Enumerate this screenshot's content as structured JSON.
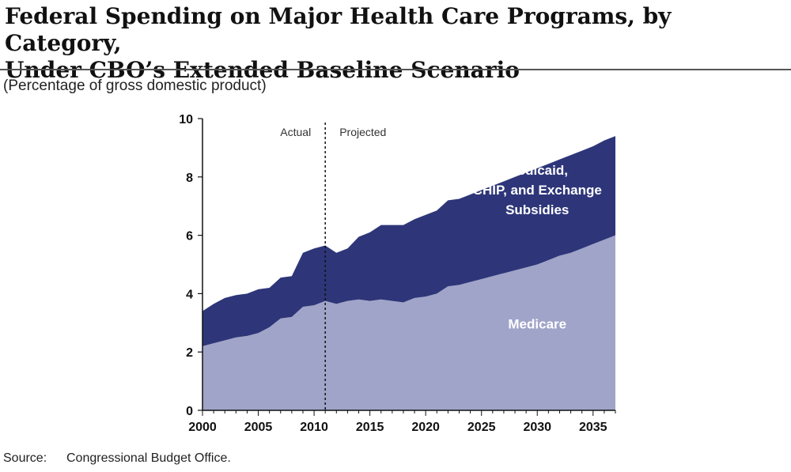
{
  "title_line1": "Federal Spending on Major Health Care Programs, by Category,",
  "title_line2": "Under CBO’s Extended Baseline Scenario",
  "subtitle": "(Percentage of gross domestic product)",
  "source_label": "Source:",
  "source_text": "Congressional Budget Office.",
  "chart_data": {
    "type": "area",
    "stacked": true,
    "xlim": [
      2000,
      2037
    ],
    "ylim": [
      0,
      10
    ],
    "x_ticks": [
      2000,
      2005,
      2010,
      2015,
      2020,
      2025,
      2030,
      2035
    ],
    "y_ticks": [
      0,
      2,
      4,
      6,
      8,
      10
    ],
    "divider": {
      "x": 2011,
      "left_label": "Actual",
      "right_label": "Projected"
    },
    "x": [
      2000,
      2001,
      2002,
      2003,
      2004,
      2005,
      2006,
      2007,
      2008,
      2009,
      2010,
      2011,
      2012,
      2013,
      2014,
      2015,
      2016,
      2017,
      2018,
      2019,
      2020,
      2021,
      2022,
      2023,
      2024,
      2025,
      2026,
      2027,
      2028,
      2029,
      2030,
      2031,
      2032,
      2033,
      2034,
      2035,
      2036,
      2037
    ],
    "series": [
      {
        "name": "Medicare",
        "color": "#a0a4c8",
        "values": [
          2.2,
          2.3,
          2.4,
          2.5,
          2.55,
          2.65,
          2.85,
          3.15,
          3.2,
          3.55,
          3.6,
          3.75,
          3.65,
          3.75,
          3.8,
          3.75,
          3.8,
          3.75,
          3.7,
          3.85,
          3.9,
          4.0,
          4.25,
          4.3,
          4.4,
          4.5,
          4.6,
          4.7,
          4.8,
          4.9,
          5.0,
          5.15,
          5.3,
          5.4,
          5.55,
          5.7,
          5.85,
          6.0
        ]
      },
      {
        "name": "Medicaid, CHIP, and Exchange Subsidies",
        "color": "#2e3679",
        "values": [
          1.2,
          1.35,
          1.45,
          1.45,
          1.45,
          1.5,
          1.35,
          1.4,
          1.4,
          1.85,
          1.95,
          1.9,
          1.75,
          1.8,
          2.15,
          2.35,
          2.55,
          2.6,
          2.65,
          2.7,
          2.8,
          2.85,
          2.95,
          2.95,
          3.0,
          3.05,
          3.1,
          3.15,
          3.2,
          3.25,
          3.3,
          3.3,
          3.3,
          3.35,
          3.35,
          3.35,
          3.4,
          3.4
        ]
      }
    ],
    "area_labels": [
      {
        "series": 0,
        "lines": [
          "Medicare"
        ],
        "x": 2030,
        "y": 2.8
      },
      {
        "series": 1,
        "lines": [
          "Medicaid,",
          "CHIP, and Exchange",
          "Subsidies"
        ],
        "x": 2030,
        "y": 7.4
      }
    ]
  }
}
